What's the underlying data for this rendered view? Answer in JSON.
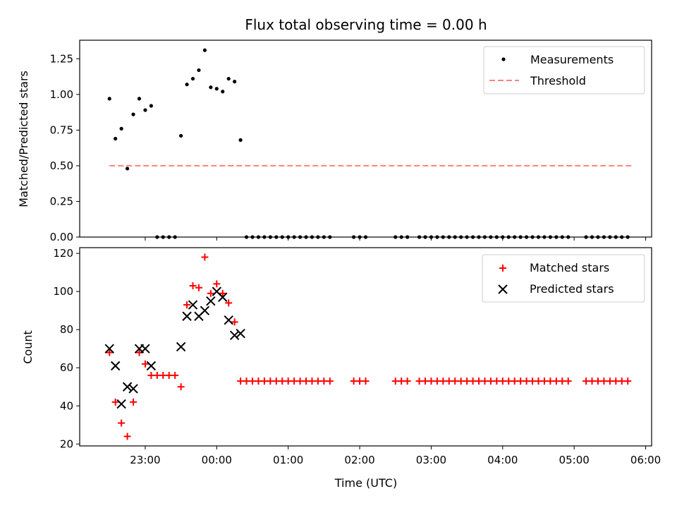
{
  "chart_data": [
    {
      "type": "scatter",
      "title": "Flux total observing time = 0.00 h",
      "xlabel": "",
      "ylabel": "Matched/Predicted stars",
      "ylim": [
        0,
        1.38
      ],
      "yticks": [
        0.0,
        0.25,
        0.5,
        0.75,
        1.0,
        1.25
      ],
      "ytick_labels": [
        "0.00",
        "0.25",
        "0.50",
        "0.75",
        "1.00",
        "1.25"
      ],
      "xlim_minutes": [
        -115,
        365
      ],
      "xtick_minutes": [
        -60,
        0,
        60,
        120,
        180,
        240,
        300,
        360
      ],
      "xtick_labels": [],
      "legend": [
        "Measurements",
        "Threshold"
      ],
      "threshold": {
        "x_start": -90,
        "x_end": 350,
        "value": 0.5,
        "color": "#ff8080"
      },
      "series": [
        {
          "name": "Measurements",
          "color": "#000000",
          "x": [
            -90,
            -85,
            -80,
            -75,
            -70,
            -65,
            -60,
            -55,
            -50,
            -45,
            -40,
            -35,
            -30,
            -25,
            -20,
            -15,
            -10,
            -5,
            0,
            5,
            10,
            15,
            20,
            25,
            30,
            35,
            40,
            45,
            50,
            55,
            60,
            65,
            70,
            75,
            80,
            85,
            90,
            95,
            115,
            120,
            125,
            150,
            155,
            160,
            170,
            175,
            180,
            185,
            190,
            195,
            200,
            205,
            210,
            215,
            220,
            225,
            230,
            235,
            240,
            245,
            250,
            255,
            260,
            265,
            270,
            275,
            280,
            285,
            290,
            295,
            310,
            315,
            320,
            325,
            330,
            335,
            340,
            345
          ],
          "y": [
            0.97,
            0.69,
            0.76,
            0.48,
            0.86,
            0.97,
            0.89,
            0.92,
            0,
            0,
            0,
            0,
            0.71,
            1.07,
            1.11,
            1.17,
            1.31,
            1.05,
            1.04,
            1.02,
            1.11,
            1.09,
            0.68,
            0,
            0,
            0,
            0,
            0,
            0,
            0,
            0,
            0,
            0,
            0,
            0,
            0,
            0,
            0,
            0,
            0,
            0,
            0,
            0,
            0,
            0,
            0,
            0,
            0,
            0,
            0,
            0,
            0,
            0,
            0,
            0,
            0,
            0,
            0,
            0,
            0,
            0,
            0,
            0,
            0,
            0,
            0,
            0,
            0,
            0,
            0,
            0,
            0,
            0,
            0,
            0,
            0,
            0,
            0
          ]
        }
      ]
    },
    {
      "type": "scatter",
      "title": "",
      "xlabel": "Time (UTC)",
      "ylabel": "Count",
      "ylim": [
        19,
        123
      ],
      "yticks": [
        20,
        40,
        60,
        80,
        100,
        120
      ],
      "ytick_labels": [
        "20",
        "40",
        "60",
        "80",
        "100",
        "120"
      ],
      "xlim_minutes": [
        -115,
        365
      ],
      "xtick_minutes": [
        -60,
        0,
        60,
        120,
        180,
        240,
        300,
        360
      ],
      "xtick_labels": [
        "23:00",
        "00:00",
        "01:00",
        "02:00",
        "03:00",
        "04:00",
        "05:00",
        "06:00"
      ],
      "legend": [
        "Matched stars",
        "Predicted stars"
      ],
      "series": [
        {
          "name": "Matched stars",
          "color": "#ff0000",
          "marker": "+",
          "x": [
            -90,
            -85,
            -80,
            -75,
            -70,
            -65,
            -60,
            -55,
            -50,
            -45,
            -40,
            -35,
            -30,
            -25,
            -20,
            -15,
            -10,
            -5,
            0,
            5,
            10,
            15,
            20,
            25,
            30,
            35,
            40,
            45,
            50,
            55,
            60,
            65,
            70,
            75,
            80,
            85,
            90,
            95,
            115,
            120,
            125,
            150,
            155,
            160,
            170,
            175,
            180,
            185,
            190,
            195,
            200,
            205,
            210,
            215,
            220,
            225,
            230,
            235,
            240,
            245,
            250,
            255,
            260,
            265,
            270,
            275,
            280,
            285,
            290,
            295,
            310,
            315,
            320,
            325,
            330,
            335,
            340,
            345
          ],
          "y": [
            68,
            42,
            31,
            24,
            42,
            68,
            62,
            56,
            56,
            56,
            56,
            56,
            50,
            93,
            103,
            102,
            118,
            99,
            104,
            99,
            94,
            84,
            53,
            53,
            53,
            53,
            53,
            53,
            53,
            53,
            53,
            53,
            53,
            53,
            53,
            53,
            53,
            53,
            53,
            53,
            53,
            53,
            53,
            53,
            53,
            53,
            53,
            53,
            53,
            53,
            53,
            53,
            53,
            53,
            53,
            53,
            53,
            53,
            53,
            53,
            53,
            53,
            53,
            53,
            53,
            53,
            53,
            53,
            53,
            53,
            53,
            53,
            53,
            53,
            53,
            53,
            53,
            53
          ]
        },
        {
          "name": "Predicted stars",
          "color": "#000000",
          "marker": "x",
          "x": [
            -90,
            -85,
            -80,
            -75,
            -70,
            -65,
            -60,
            -55,
            -30,
            -25,
            -20,
            -15,
            -10,
            -5,
            0,
            5,
            10,
            15,
            20
          ],
          "y": [
            70,
            61,
            41,
            50,
            49,
            70,
            70,
            61,
            71,
            87,
            93,
            87,
            90,
            95,
            100,
            97,
            85,
            77,
            78
          ]
        }
      ]
    }
  ]
}
